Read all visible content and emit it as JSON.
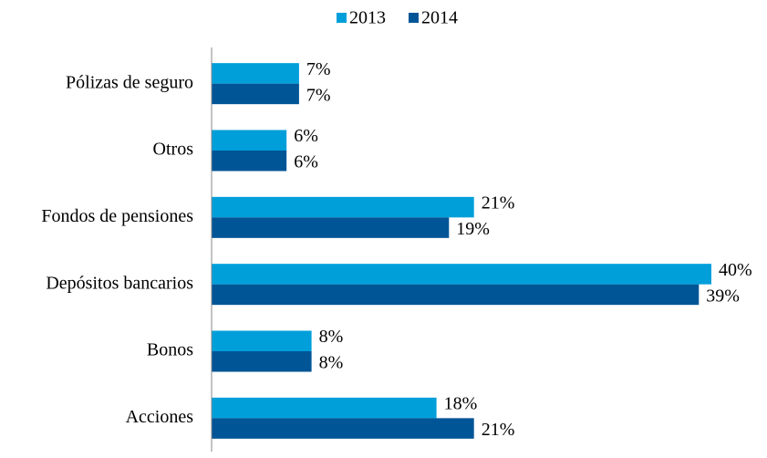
{
  "chart_data": {
    "type": "bar",
    "orientation": "horizontal",
    "categories": [
      "Pólizas de seguro",
      "Otros",
      "Fondos de pensiones",
      "Depósitos bancarios",
      "Bonos",
      "Acciones"
    ],
    "series": [
      {
        "name": "2013",
        "color": "#009fda",
        "values": [
          7,
          6,
          21,
          40,
          8,
          18
        ],
        "value_labels": [
          "7%",
          "6%",
          "21%",
          "40%",
          "8%",
          "18%"
        ]
      },
      {
        "name": "2014",
        "color": "#005596",
        "values": [
          7,
          6,
          19,
          39,
          8,
          21
        ],
        "value_labels": [
          "7%",
          "6%",
          "19%",
          "39%",
          "8%",
          "21%"
        ]
      }
    ],
    "legend": "top"
  }
}
